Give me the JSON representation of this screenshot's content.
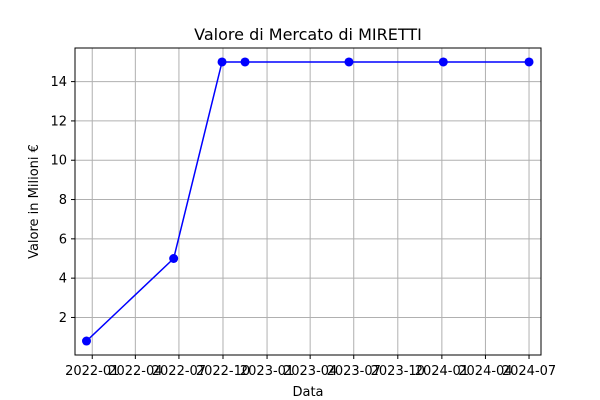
{
  "chart_data": {
    "type": "line",
    "title": "Valore di Mercato di MIRETTI",
    "xlabel": "Data",
    "ylabel": "Valore in Milioni €",
    "x_tick_labels": [
      "2022-01",
      "2022-04",
      "2022-07",
      "2022-10",
      "2023-01",
      "2023-04",
      "2023-07",
      "2023-10",
      "2024-01",
      "2024-04",
      "2024-07"
    ],
    "y_tick_labels": [
      "2",
      "4",
      "6",
      "8",
      "10",
      "12",
      "14"
    ],
    "grid": true,
    "series": [
      {
        "color": "#0000ff",
        "marker": "circle",
        "points": [
          {
            "x": "2021-12-20",
            "y": 0.8
          },
          {
            "x": "2022-06-20",
            "y": 5.0
          },
          {
            "x": "2022-09-29",
            "y": 15.0
          },
          {
            "x": "2022-11-16",
            "y": 15.0
          },
          {
            "x": "2023-06-21",
            "y": 15.0
          },
          {
            "x": "2024-01-04",
            "y": 15.0
          },
          {
            "x": "2024-07-01",
            "y": 15.0
          }
        ]
      }
    ]
  }
}
